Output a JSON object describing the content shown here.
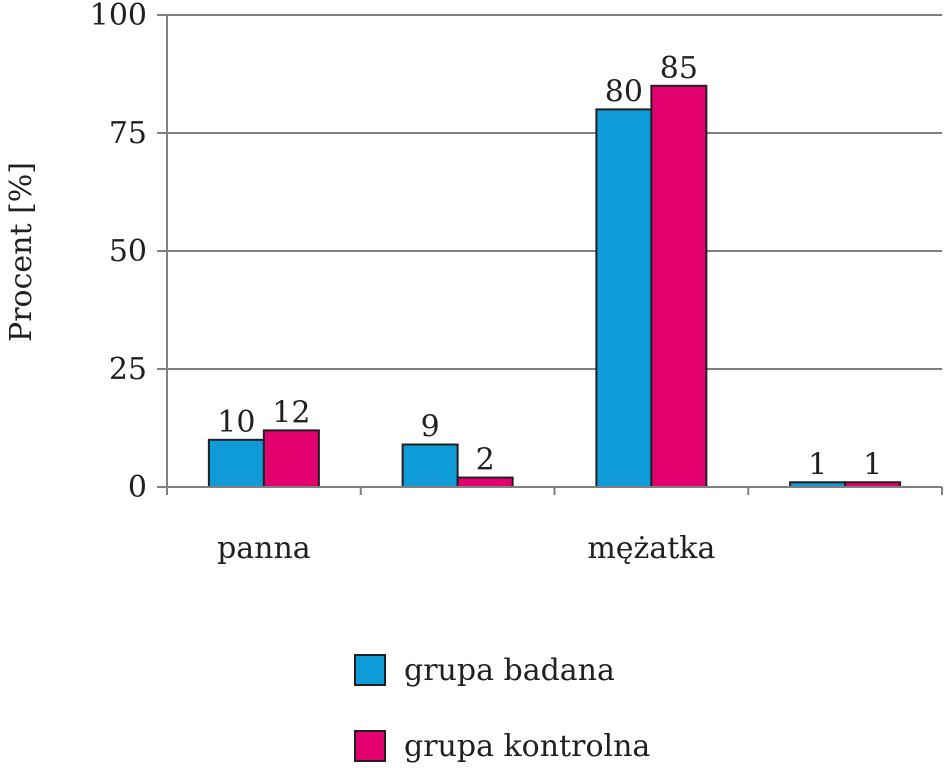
{
  "chart_data": {
    "type": "bar",
    "categories": [
      "panna",
      "",
      "mężatka",
      ""
    ],
    "series": [
      {
        "name": "grupa badana",
        "values": [
          10,
          9,
          80,
          1
        ],
        "color": "#0f9bd7"
      },
      {
        "name": "grupa kontrolna",
        "values": [
          12,
          2,
          85,
          1
        ],
        "color": "#e3006f"
      }
    ],
    "ylabel": "Procent [%]",
    "xlabel": "",
    "ylim": [
      0,
      100
    ],
    "yticks": [
      0,
      25,
      50,
      75,
      100
    ],
    "grid": true,
    "legend": "bottom",
    "colors": {
      "axis": "#7f7f7f",
      "grid": "#7f7f7f",
      "bar_stroke": "#231f20",
      "text": "#231f20"
    }
  }
}
